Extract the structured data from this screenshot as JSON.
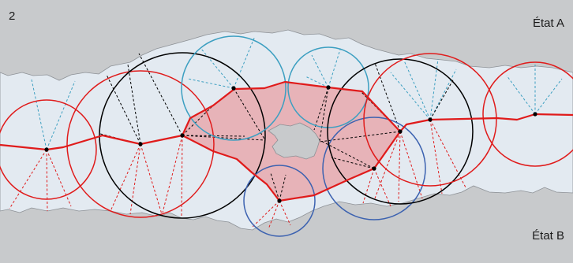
{
  "figure_number": "2",
  "labels": {
    "state_a": "État A",
    "state_b": "État B"
  },
  "colors": {
    "background": "#c8cacc",
    "channel": "#e3eaf1",
    "channel_outline": "#8d9196",
    "path": "#e01b1b",
    "loop_fill": "#e8a9ae",
    "circle_black": "#000000",
    "circle_teal": "#3c9fc1",
    "circle_blue": "#3c62b0",
    "circle_red": "#e01b1b"
  }
}
